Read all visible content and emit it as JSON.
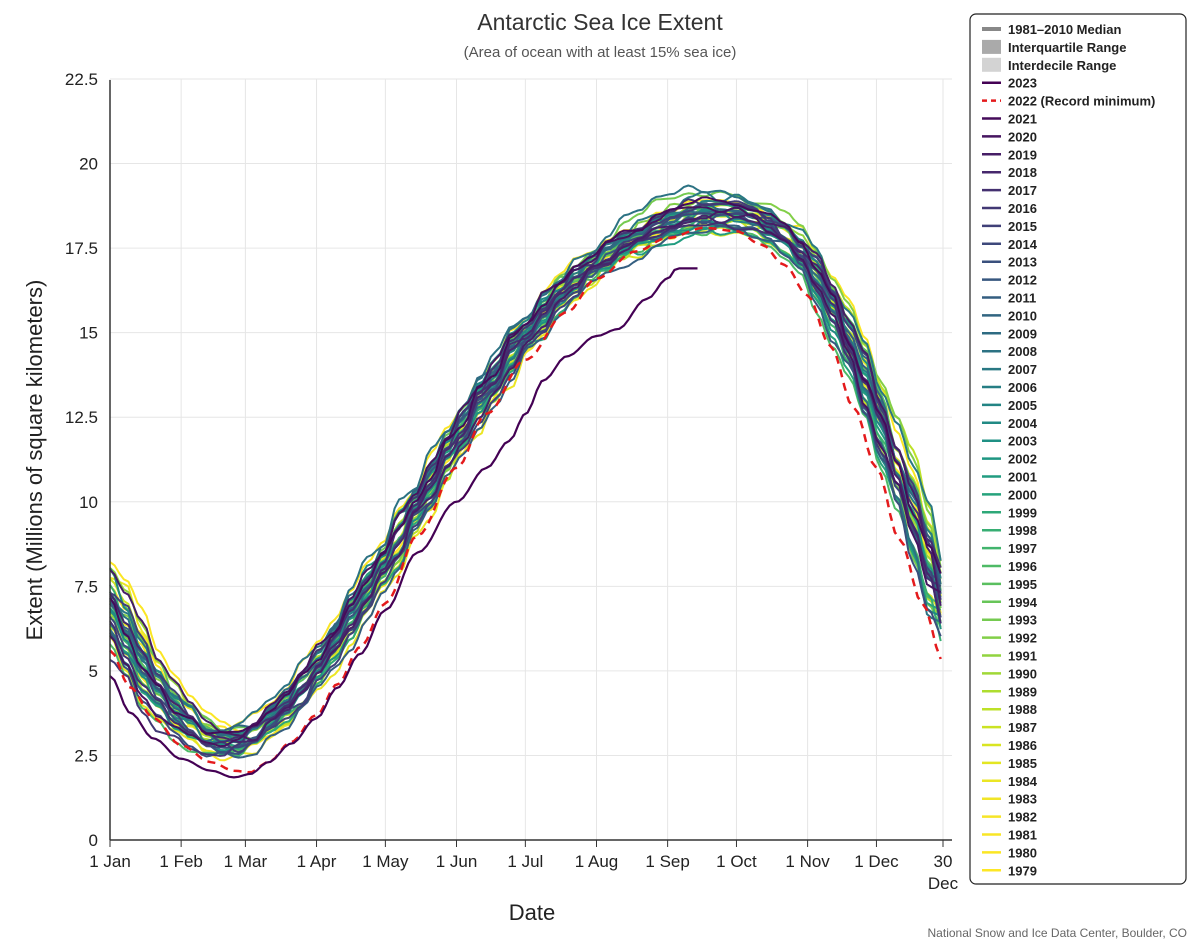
{
  "chart_data": {
    "type": "line",
    "title": "Antarctic Sea Ice Extent",
    "subtitle": "(Area of ocean with at least 15% sea ice)",
    "xlabel": "Date",
    "ylabel": "Extent (Millions of square kilometers)",
    "credit": "National Snow and Ice Data Center, Boulder, CO",
    "xlim": [
      1,
      364
    ],
    "ylim": [
      0,
      22.5
    ],
    "grid": true,
    "legend_position": "right",
    "y_ticks": [
      {
        "value": 0,
        "label": "0"
      },
      {
        "value": 2.5,
        "label": "2.5"
      },
      {
        "value": 5,
        "label": "5"
      },
      {
        "value": 7.5,
        "label": "7.5"
      },
      {
        "value": 10,
        "label": "10"
      },
      {
        "value": 12.5,
        "label": "12.5"
      },
      {
        "value": 15,
        "label": "15"
      },
      {
        "value": 17.5,
        "label": "17.5"
      },
      {
        "value": 20,
        "label": "20"
      },
      {
        "value": 22.5,
        "label": "22.5"
      }
    ],
    "x_ticks": [
      {
        "day": 1,
        "label": "1 Jan"
      },
      {
        "day": 32,
        "label": "1 Feb"
      },
      {
        "day": 60,
        "label": "1 Mar"
      },
      {
        "day": 91,
        "label": "1 Apr"
      },
      {
        "day": 121,
        "label": "1 May"
      },
      {
        "day": 152,
        "label": "1 Jun"
      },
      {
        "day": 182,
        "label": "1 Jul"
      },
      {
        "day": 213,
        "label": "1 Aug"
      },
      {
        "day": 244,
        "label": "1 Sep"
      },
      {
        "day": 274,
        "label": "1 Oct"
      },
      {
        "day": 305,
        "label": "1 Nov"
      },
      {
        "day": 335,
        "label": "1 Dec"
      },
      {
        "day": 364,
        "label": "30",
        "label2": "Dec"
      }
    ],
    "legend_bands": [
      {
        "name": "1981–2010 Median",
        "kind": "line",
        "color": "#888888"
      },
      {
        "name": "Interquartile Range",
        "kind": "band",
        "color": "#aaaaaa"
      },
      {
        "name": "Interdecile Range",
        "kind": "band",
        "color": "#d3d3d3"
      }
    ],
    "series": [
      {
        "name": "2023",
        "year": 2023,
        "color": "#440154",
        "points": [
          [
            1,
            4.85
          ],
          [
            10,
            3.75
          ],
          [
            20,
            3.0
          ],
          [
            32,
            2.4
          ],
          [
            45,
            2.05
          ],
          [
            55,
            1.85
          ],
          [
            62,
            1.95
          ],
          [
            70,
            2.3
          ],
          [
            80,
            2.85
          ],
          [
            91,
            3.6
          ],
          [
            100,
            4.5
          ],
          [
            110,
            5.5
          ],
          [
            121,
            6.8
          ],
          [
            135,
            8.5
          ],
          [
            152,
            10.0
          ],
          [
            165,
            11.0
          ],
          [
            175,
            11.8
          ],
          [
            182,
            12.6
          ],
          [
            190,
            13.6
          ],
          [
            200,
            14.3
          ],
          [
            213,
            14.9
          ],
          [
            222,
            15.1
          ],
          [
            235,
            16.0
          ],
          [
            244,
            16.6
          ],
          [
            248,
            16.9
          ],
          [
            257,
            16.9
          ]
        ]
      },
      {
        "name": "2022 (Record minimum)",
        "year": 2022,
        "color": "#e41a1c",
        "dashed": true,
        "points": [
          [
            1,
            5.6
          ],
          [
            10,
            4.5
          ],
          [
            20,
            3.6
          ],
          [
            32,
            2.8
          ],
          [
            45,
            2.3
          ],
          [
            55,
            2.05
          ],
          [
            62,
            2.0
          ],
          [
            70,
            2.3
          ],
          [
            80,
            2.9
          ],
          [
            91,
            3.7
          ],
          [
            100,
            4.6
          ],
          [
            110,
            5.7
          ],
          [
            121,
            7.0
          ],
          [
            135,
            9.0
          ],
          [
            152,
            11.0
          ],
          [
            165,
            12.6
          ],
          [
            182,
            14.2
          ],
          [
            200,
            15.6
          ],
          [
            213,
            16.6
          ],
          [
            230,
            17.4
          ],
          [
            244,
            17.8
          ],
          [
            260,
            18.1
          ],
          [
            274,
            18.0
          ],
          [
            285,
            17.6
          ],
          [
            295,
            17.0
          ],
          [
            305,
            16.1
          ],
          [
            315,
            14.6
          ],
          [
            325,
            12.8
          ],
          [
            335,
            11.0
          ],
          [
            345,
            8.9
          ],
          [
            355,
            7.0
          ],
          [
            364,
            5.3
          ]
        ]
      },
      {
        "name": "2021",
        "year": 2021,
        "color": "#450b5a"
      },
      {
        "name": "2020",
        "year": 2020,
        "color": "#461560"
      },
      {
        "name": "2019",
        "year": 2019,
        "color": "#461e66"
      },
      {
        "name": "2018",
        "year": 2018,
        "color": "#46276c"
      },
      {
        "name": "2017",
        "year": 2017,
        "color": "#443070"
      },
      {
        "name": "2016",
        "year": 2016,
        "color": "#423874"
      },
      {
        "name": "2015",
        "year": 2015,
        "color": "#404078"
      },
      {
        "name": "2014",
        "year": 2014,
        "color": "#3d487b"
      },
      {
        "name": "2013",
        "year": 2013,
        "color": "#3a507d"
      },
      {
        "name": "2012",
        "year": 2012,
        "color": "#37577f"
      },
      {
        "name": "2011",
        "year": 2011,
        "color": "#345e80"
      },
      {
        "name": "2010",
        "year": 2010,
        "color": "#316581"
      },
      {
        "name": "2009",
        "year": 2009,
        "color": "#2e6b82"
      },
      {
        "name": "2008",
        "year": 2008,
        "color": "#2c7283"
      },
      {
        "name": "2007",
        "year": 2007,
        "color": "#297883"
      },
      {
        "name": "2006",
        "year": 2006,
        "color": "#267e84"
      },
      {
        "name": "2005",
        "year": 2005,
        "color": "#238484"
      },
      {
        "name": "2004",
        "year": 2004,
        "color": "#218a84"
      },
      {
        "name": "2003",
        "year": 2003,
        "color": "#1f9084"
      },
      {
        "name": "2002",
        "year": 2002,
        "color": "#1f9682"
      },
      {
        "name": "2001",
        "year": 2001,
        "color": "#219c80"
      },
      {
        "name": "2000",
        "year": 2000,
        "color": "#26a27c"
      },
      {
        "name": "1999",
        "year": 1999,
        "color": "#2ea878"
      },
      {
        "name": "1998",
        "year": 1998,
        "color": "#37ae73"
      },
      {
        "name": "1997",
        "year": 1997,
        "color": "#42b46d"
      },
      {
        "name": "1996",
        "year": 1996,
        "color": "#4eba66"
      },
      {
        "name": "1995",
        "year": 1995,
        "color": "#5abf5f"
      },
      {
        "name": "1994",
        "year": 1994,
        "color": "#67c558"
      },
      {
        "name": "1993",
        "year": 1993,
        "color": "#75ca50"
      },
      {
        "name": "1992",
        "year": 1992,
        "color": "#82cf48"
      },
      {
        "name": "1991",
        "year": 1991,
        "color": "#91d43f"
      },
      {
        "name": "1990",
        "year": 1990,
        "color": "#a0d837"
      },
      {
        "name": "1989",
        "year": 1989,
        "color": "#aedd2f"
      },
      {
        "name": "1988",
        "year": 1988,
        "color": "#bde128"
      },
      {
        "name": "1987",
        "year": 1987,
        "color": "#cbe323"
      },
      {
        "name": "1986",
        "year": 1986,
        "color": "#d9e521"
      },
      {
        "name": "1985",
        "year": 1985,
        "color": "#e3e622"
      },
      {
        "name": "1984",
        "year": 1984,
        "color": "#ebe625"
      },
      {
        "name": "1983",
        "year": 1983,
        "color": "#f1e527"
      },
      {
        "name": "1982",
        "year": 1982,
        "color": "#f6e528"
      },
      {
        "name": "1981",
        "year": 1981,
        "color": "#f9e526"
      },
      {
        "name": "1980",
        "year": 1980,
        "color": "#fbe624"
      },
      {
        "name": "1979",
        "year": 1979,
        "color": "#fde725"
      }
    ],
    "typical_year_points": [
      [
        1,
        7.0
      ],
      [
        10,
        5.8
      ],
      [
        20,
        4.6
      ],
      [
        32,
        3.6
      ],
      [
        45,
        3.0
      ],
      [
        52,
        2.85
      ],
      [
        60,
        2.95
      ],
      [
        70,
        3.4
      ],
      [
        80,
        4.1
      ],
      [
        91,
        5.0
      ],
      [
        100,
        5.9
      ],
      [
        110,
        7.0
      ],
      [
        121,
        8.2
      ],
      [
        135,
        9.9
      ],
      [
        152,
        11.8
      ],
      [
        165,
        13.3
      ],
      [
        182,
        14.9
      ],
      [
        200,
        16.3
      ],
      [
        213,
        17.1
      ],
      [
        230,
        17.8
      ],
      [
        244,
        18.25
      ],
      [
        260,
        18.55
      ],
      [
        274,
        18.55
      ],
      [
        285,
        18.3
      ],
      [
        295,
        17.9
      ],
      [
        305,
        17.2
      ],
      [
        315,
        16.0
      ],
      [
        325,
        14.5
      ],
      [
        335,
        12.8
      ],
      [
        345,
        10.8
      ],
      [
        355,
        8.9
      ],
      [
        364,
        7.1
      ]
    ]
  }
}
